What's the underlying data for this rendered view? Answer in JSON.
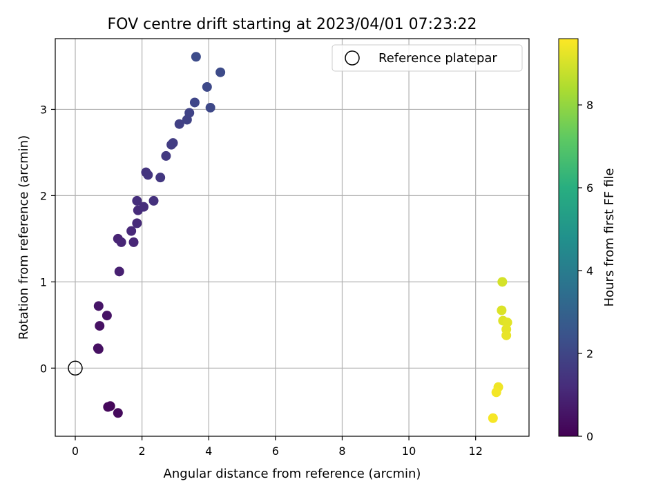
{
  "chart_data": {
    "type": "scatter",
    "title": "FOV centre drift starting at 2023/04/01 07:23:22",
    "xlabel": "Angular distance from reference (arcmin)",
    "ylabel": "Rotation from reference (arcmin)",
    "xlim": [
      -0.6,
      13.6
    ],
    "ylim": [
      -0.79,
      3.82
    ],
    "xticks": [
      0,
      2,
      4,
      6,
      8,
      10,
      12
    ],
    "yticks": [
      0,
      1,
      2,
      3
    ],
    "grid": true,
    "legend": {
      "position": "top-right",
      "entries": [
        "Reference platepar"
      ]
    },
    "colorbar": {
      "label": "Hours from first FF file",
      "colormap": "viridis",
      "range": [
        0,
        9.6
      ],
      "ticks": [
        0,
        2,
        4,
        6,
        8
      ]
    },
    "reference": {
      "x": 0,
      "y": 0,
      "label": "Reference platepar"
    },
    "points": [
      {
        "x": 1.05,
        "y": -0.44,
        "hours": 0.15
      },
      {
        "x": 0.98,
        "y": -0.45,
        "hours": 0.2
      },
      {
        "x": 1.28,
        "y": -0.52,
        "hours": 0.25
      },
      {
        "x": 0.68,
        "y": 0.23,
        "hours": 0.35
      },
      {
        "x": 0.7,
        "y": 0.22,
        "hours": 0.4
      },
      {
        "x": 0.73,
        "y": 0.49,
        "hours": 0.45
      },
      {
        "x": 0.95,
        "y": 0.61,
        "hours": 0.5
      },
      {
        "x": 0.7,
        "y": 0.72,
        "hours": 0.55
      },
      {
        "x": 1.32,
        "y": 1.12,
        "hours": 0.85
      },
      {
        "x": 1.28,
        "y": 1.5,
        "hours": 0.95
      },
      {
        "x": 1.38,
        "y": 1.46,
        "hours": 1.0
      },
      {
        "x": 1.75,
        "y": 1.46,
        "hours": 1.05
      },
      {
        "x": 1.68,
        "y": 1.59,
        "hours": 1.1
      },
      {
        "x": 1.85,
        "y": 1.68,
        "hours": 1.15
      },
      {
        "x": 1.88,
        "y": 1.83,
        "hours": 1.2
      },
      {
        "x": 2.05,
        "y": 1.87,
        "hours": 1.25
      },
      {
        "x": 1.85,
        "y": 1.94,
        "hours": 1.3
      },
      {
        "x": 2.35,
        "y": 1.94,
        "hours": 1.35
      },
      {
        "x": 2.12,
        "y": 2.27,
        "hours": 1.45
      },
      {
        "x": 2.18,
        "y": 2.24,
        "hours": 1.5
      },
      {
        "x": 2.55,
        "y": 2.21,
        "hours": 1.55
      },
      {
        "x": 2.72,
        "y": 2.46,
        "hours": 1.65
      },
      {
        "x": 2.88,
        "y": 2.59,
        "hours": 1.7
      },
      {
        "x": 2.93,
        "y": 2.61,
        "hours": 1.75
      },
      {
        "x": 3.12,
        "y": 2.83,
        "hours": 1.85
      },
      {
        "x": 3.35,
        "y": 2.88,
        "hours": 1.9
      },
      {
        "x": 3.42,
        "y": 2.96,
        "hours": 1.95
      },
      {
        "x": 3.58,
        "y": 3.08,
        "hours": 2.05
      },
      {
        "x": 4.05,
        "y": 3.02,
        "hours": 2.1
      },
      {
        "x": 3.95,
        "y": 3.26,
        "hours": 2.15
      },
      {
        "x": 4.35,
        "y": 3.43,
        "hours": 2.2
      },
      {
        "x": 3.62,
        "y": 3.61,
        "hours": 2.25
      },
      {
        "x": 12.8,
        "y": 1.0,
        "hours": 9.0
      },
      {
        "x": 12.78,
        "y": 0.67,
        "hours": 9.1
      },
      {
        "x": 12.82,
        "y": 0.55,
        "hours": 9.15
      },
      {
        "x": 12.95,
        "y": 0.53,
        "hours": 9.2
      },
      {
        "x": 12.92,
        "y": 0.45,
        "hours": 9.25
      },
      {
        "x": 12.92,
        "y": 0.38,
        "hours": 9.3
      },
      {
        "x": 12.68,
        "y": -0.22,
        "hours": 9.4
      },
      {
        "x": 12.62,
        "y": -0.28,
        "hours": 9.45
      },
      {
        "x": 12.52,
        "y": -0.58,
        "hours": 9.5
      }
    ]
  }
}
